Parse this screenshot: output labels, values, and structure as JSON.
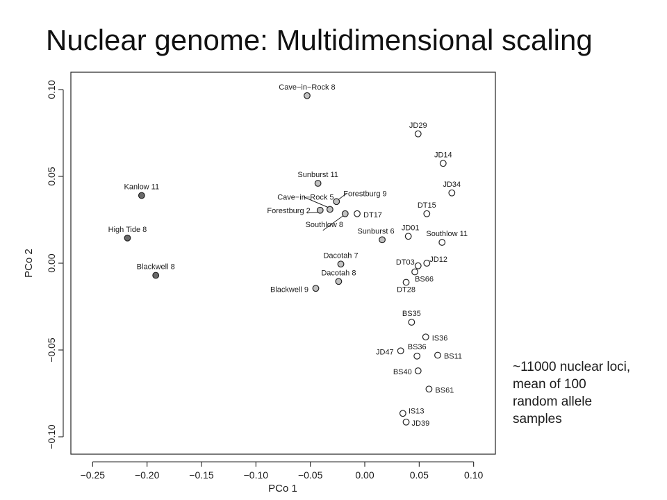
{
  "slide": {
    "title": "Nuclear genome: Multidimensional scaling",
    "note_lines": [
      "~11000 nuclear loci,",
      "mean of 100",
      "random allele",
      "samples"
    ]
  },
  "colors": {
    "open": "#ffffff",
    "light_gray": "#c2c2c2",
    "dark_gray": "#6a6a6a",
    "stroke": "#222222"
  },
  "chart_data": {
    "type": "scatter",
    "xlabel": "PCo 1",
    "ylabel": "PCo 2",
    "xlim": [
      -0.27,
      0.12
    ],
    "ylim": [
      -0.11,
      0.11
    ],
    "xticks": [
      -0.25,
      -0.2,
      -0.15,
      -0.1,
      -0.05,
      0.0,
      0.05,
      0.1
    ],
    "yticks": [
      -0.1,
      -0.05,
      0.0,
      0.05,
      0.1
    ],
    "xtick_labels": [
      "−0.25",
      "−0.20",
      "−0.15",
      "−0.10",
      "−0.05",
      "0.00",
      "0.05",
      "0.10"
    ],
    "ytick_labels": [
      "−0.10",
      "−0.05",
      "0.00",
      "0.05",
      "0.10"
    ],
    "grid": false,
    "points": [
      {
        "label": "Kanlow 11",
        "x": -0.205,
        "y": 0.039,
        "fill": "dark_gray"
      },
      {
        "label": "High Tide 8",
        "x": -0.218,
        "y": 0.0145,
        "fill": "dark_gray"
      },
      {
        "label": "Blackwell 8",
        "x": -0.192,
        "y": -0.007,
        "fill": "dark_gray"
      },
      {
        "label": "Cave−in−Rock 8",
        "x": -0.053,
        "y": 0.0965,
        "fill": "light_gray"
      },
      {
        "label": "Sunburst 11",
        "x": -0.043,
        "y": 0.046,
        "fill": "light_gray"
      },
      {
        "label": "Forestburg 9",
        "x": -0.026,
        "y": 0.0355,
        "fill": "light_gray"
      },
      {
        "label": "Cave−in−Rock 5",
        "x": -0.032,
        "y": 0.031,
        "fill": "light_gray"
      },
      {
        "label": "Forestburg 2",
        "x": -0.041,
        "y": 0.0305,
        "fill": "light_gray"
      },
      {
        "label": "Southlow 8",
        "x": -0.018,
        "y": 0.0285,
        "fill": "light_gray"
      },
      {
        "label": "Sunburst 6",
        "x": 0.016,
        "y": 0.0135,
        "fill": "light_gray"
      },
      {
        "label": "Dacotah 7",
        "x": -0.022,
        "y": -0.0005,
        "fill": "light_gray"
      },
      {
        "label": "Dacotah 8",
        "x": -0.024,
        "y": -0.0105,
        "fill": "light_gray"
      },
      {
        "label": "Blackwell 9",
        "x": -0.045,
        "y": -0.0145,
        "fill": "light_gray"
      },
      {
        "label": "JD29",
        "x": 0.049,
        "y": 0.0745,
        "fill": "open"
      },
      {
        "label": "JD14",
        "x": 0.072,
        "y": 0.0575,
        "fill": "open"
      },
      {
        "label": "JD34",
        "x": 0.08,
        "y": 0.0405,
        "fill": "open"
      },
      {
        "label": "DT15",
        "x": 0.057,
        "y": 0.0285,
        "fill": "open"
      },
      {
        "label": "DT17",
        "x": -0.007,
        "y": 0.0285,
        "fill": "open"
      },
      {
        "label": "JD01",
        "x": 0.04,
        "y": 0.0155,
        "fill": "open"
      },
      {
        "label": "Southlow 11",
        "x": 0.071,
        "y": 0.012,
        "fill": "open"
      },
      {
        "label": "JD12",
        "x": 0.057,
        "y": 0.0,
        "fill": "open"
      },
      {
        "label": "DT03",
        "x": 0.049,
        "y": -0.0015,
        "fill": "open"
      },
      {
        "label": "BS66",
        "x": 0.046,
        "y": -0.005,
        "fill": "open"
      },
      {
        "label": "DT28",
        "x": 0.038,
        "y": -0.011,
        "fill": "open"
      },
      {
        "label": "BS35",
        "x": 0.043,
        "y": -0.034,
        "fill": "open"
      },
      {
        "label": "IS36",
        "x": 0.056,
        "y": -0.0425,
        "fill": "open"
      },
      {
        "label": "JD47",
        "x": 0.033,
        "y": -0.0505,
        "fill": "open"
      },
      {
        "label": "BS36",
        "x": 0.048,
        "y": -0.0535,
        "fill": "open"
      },
      {
        "label": "BS11",
        "x": 0.067,
        "y": -0.053,
        "fill": "open"
      },
      {
        "label": "BS40",
        "x": 0.049,
        "y": -0.062,
        "fill": "open"
      },
      {
        "label": "BS61",
        "x": 0.059,
        "y": -0.0725,
        "fill": "open"
      },
      {
        "label": "IS13",
        "x": 0.035,
        "y": -0.0865,
        "fill": "open"
      },
      {
        "label": "JD39",
        "x": 0.038,
        "y": -0.0915,
        "fill": "open"
      }
    ]
  }
}
